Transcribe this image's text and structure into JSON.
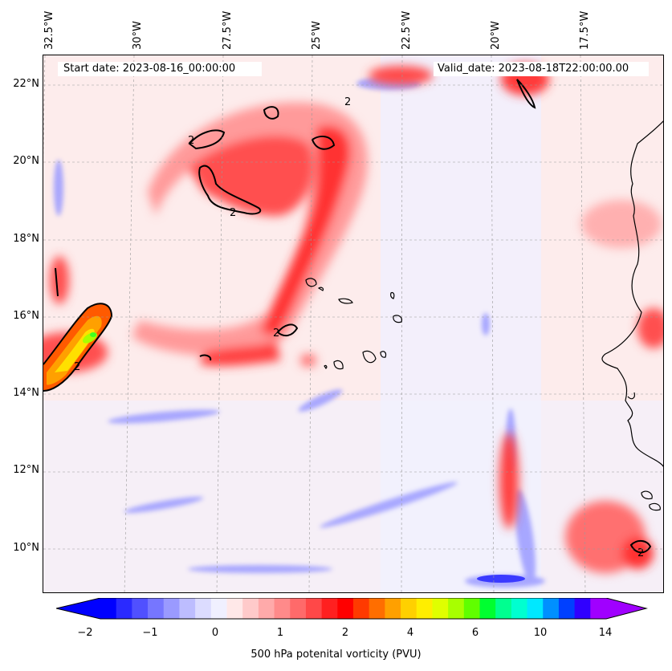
{
  "info": {
    "start_date": "Start date: 2023-08-16_00:00:00",
    "valid_date": "Valid_date: 2023-08-18T22:00:00.00"
  },
  "lon_ticks": [
    "32.5°W",
    "30°W",
    "27.5°W",
    "25°W",
    "22.5°W",
    "20°W",
    "17.5°W"
  ],
  "lat_ticks": [
    "22°N",
    "20°N",
    "18°N",
    "16°N",
    "14°N",
    "12°N",
    "10°N"
  ],
  "colorbar": {
    "label": "500 hPa potenital vorticity (PVU)",
    "ticks": [
      "−2",
      "−1",
      "0",
      "1",
      "2",
      "4",
      "6",
      "10",
      "14"
    ],
    "colors": [
      "#0000ff",
      "#2a2aff",
      "#5050ff",
      "#7676ff",
      "#9a9aff",
      "#bdbdff",
      "#dcdcff",
      "#f0f0ff",
      "#ffe8e8",
      "#ffcaca",
      "#ffaaaa",
      "#ff8a8a",
      "#ff6a6a",
      "#ff4848",
      "#ff2020",
      "#ff0000",
      "#ff3a00",
      "#ff6e00",
      "#ffa000",
      "#ffd000",
      "#ffee00",
      "#e0ff00",
      "#a8ff00",
      "#60ff00",
      "#00ff30",
      "#00ff90",
      "#00ffd0",
      "#00e8ff",
      "#0090ff",
      "#0040ff",
      "#3000ff",
      "#a000ff"
    ]
  },
  "contour_label": "2"
}
